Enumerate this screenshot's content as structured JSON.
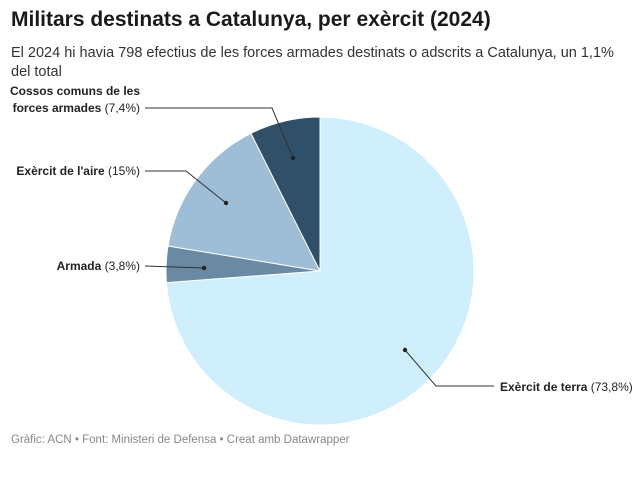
{
  "title": "Militars destinats a Catalunya, per exèrcit (2024)",
  "subtitle": "El 2024 hi havia 798 efectius de les forces armades destinats o adscrits a Catalunya, un 1,1% del total",
  "footer": "Gràfic: ACN • Font: Ministeri de Defensa • Creat amb Datawrapper",
  "chart_data": {
    "type": "pie",
    "start": "top",
    "direction": "clockwise",
    "slices": [
      {
        "name": "Exèrcit de terra",
        "value": 73.8,
        "label": "(73,8%)",
        "color": "#d0effc"
      },
      {
        "name": "Armada",
        "value": 3.8,
        "label": "(3,8%)",
        "color": "#6a8aa3"
      },
      {
        "name": "Exèrcit de l'aire",
        "value": 15,
        "label": "(15%)",
        "color": "#9ebdd6"
      },
      {
        "name": "Cossos comuns de les forces armades",
        "name_lines": [
          "Cossos comuns de les",
          "forces armades"
        ],
        "value": 7.4,
        "label": "(7,4%)",
        "color": "#2f5068"
      }
    ]
  }
}
